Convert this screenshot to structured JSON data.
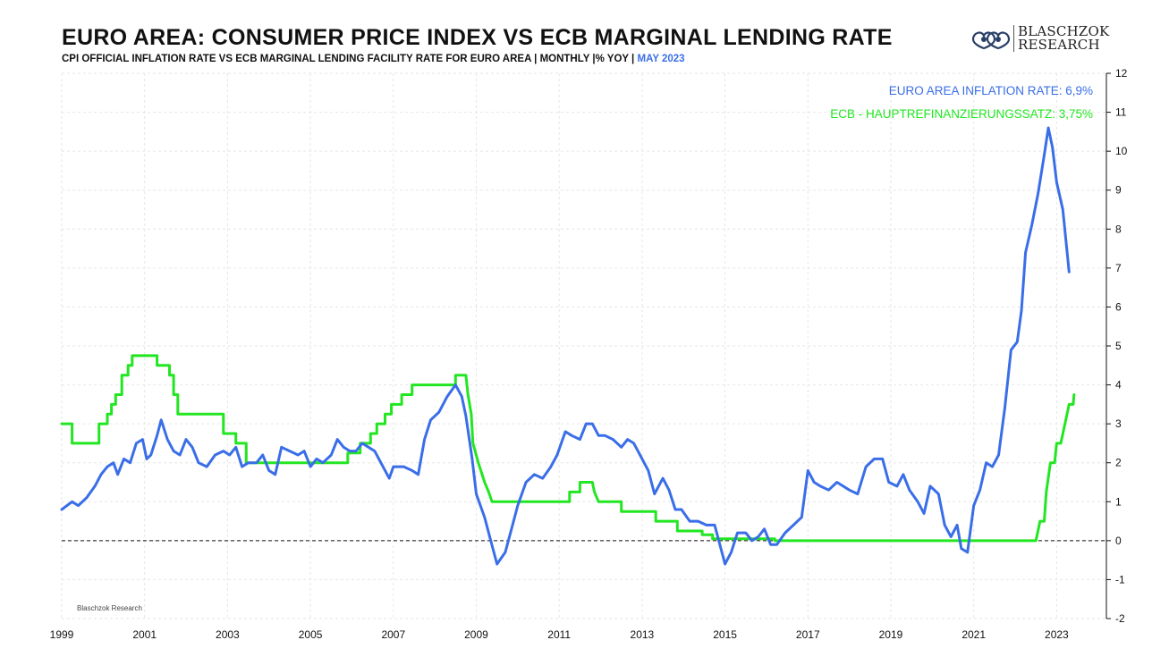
{
  "header": {
    "title": "EURO AREA: CONSUMER PRICE INDEX VS ECB MARGINAL LENDING RATE",
    "subtitle": "CPI OFFICIAL INFLATION RATE VS ECB MARGINAL LENDING FACILITY RATE FOR EURO AREA | MONTHLY |% YOY |",
    "subtitle_date": "MAY 2023"
  },
  "logo": {
    "line1": "BLASCHZOK",
    "line2": "RESEARCH"
  },
  "watermark": "Blaschzok Research",
  "colors": {
    "inflation": "#3a6ee8",
    "ecb": "#22e622",
    "zero_line": "#111111",
    "grid": "#e6e6e6"
  },
  "chart_data": {
    "type": "line",
    "title": "EURO AREA: CONSUMER PRICE INDEX VS ECB MARGINAL LENDING RATE",
    "xlim": [
      1999,
      2024.2
    ],
    "ylim": [
      -2,
      12
    ],
    "y_axis_position": "right",
    "x_ticks": [
      "1999",
      "2001",
      "2003",
      "2005",
      "2007",
      "2009",
      "2011",
      "2013",
      "2015",
      "2017",
      "2019",
      "2021",
      "2023"
    ],
    "y_ticks": [
      "12",
      "11",
      "10",
      "9",
      "8",
      "7",
      "6",
      "5",
      "4",
      "3",
      "2",
      "1",
      "0",
      "-1",
      "-2"
    ],
    "grid": true,
    "reference_line": {
      "y": 0,
      "style": "dashed"
    },
    "legend": [
      {
        "label": "EURO AREA INFLATION RATE: 6,9%",
        "series": "inflation"
      },
      {
        "label": "ECB - HAUPTREFINANZIERUNGSSATZ: 3,75%",
        "series": "ecb"
      }
    ],
    "series": [
      {
        "key": "inflation",
        "points": [
          [
            1999.0,
            0.8
          ],
          [
            1999.25,
            1.0
          ],
          [
            1999.4,
            0.9
          ],
          [
            1999.6,
            1.1
          ],
          [
            1999.8,
            1.4
          ],
          [
            1999.95,
            1.7
          ],
          [
            2000.1,
            1.9
          ],
          [
            2000.25,
            2.0
          ],
          [
            2000.35,
            1.7
          ],
          [
            2000.5,
            2.1
          ],
          [
            2000.65,
            2.0
          ],
          [
            2000.8,
            2.5
          ],
          [
            2000.95,
            2.6
          ],
          [
            2001.05,
            2.1
          ],
          [
            2001.15,
            2.2
          ],
          [
            2001.3,
            2.7
          ],
          [
            2001.4,
            3.1
          ],
          [
            2001.55,
            2.6
          ],
          [
            2001.7,
            2.3
          ],
          [
            2001.85,
            2.2
          ],
          [
            2002.0,
            2.6
          ],
          [
            2002.15,
            2.4
          ],
          [
            2002.3,
            2.0
          ],
          [
            2002.5,
            1.9
          ],
          [
            2002.7,
            2.2
          ],
          [
            2002.9,
            2.3
          ],
          [
            2003.05,
            2.2
          ],
          [
            2003.2,
            2.4
          ],
          [
            2003.35,
            1.9
          ],
          [
            2003.5,
            2.0
          ],
          [
            2003.7,
            2.0
          ],
          [
            2003.85,
            2.2
          ],
          [
            2004.0,
            1.8
          ],
          [
            2004.15,
            1.7
          ],
          [
            2004.3,
            2.4
          ],
          [
            2004.5,
            2.3
          ],
          [
            2004.7,
            2.2
          ],
          [
            2004.85,
            2.3
          ],
          [
            2005.0,
            1.9
          ],
          [
            2005.15,
            2.1
          ],
          [
            2005.3,
            2.0
          ],
          [
            2005.5,
            2.2
          ],
          [
            2005.65,
            2.6
          ],
          [
            2005.8,
            2.4
          ],
          [
            2005.95,
            2.3
          ],
          [
            2006.1,
            2.3
          ],
          [
            2006.25,
            2.5
          ],
          [
            2006.4,
            2.4
          ],
          [
            2006.55,
            2.3
          ],
          [
            2006.75,
            1.9
          ],
          [
            2006.9,
            1.6
          ],
          [
            2007.0,
            1.9
          ],
          [
            2007.25,
            1.9
          ],
          [
            2007.45,
            1.8
          ],
          [
            2007.6,
            1.7
          ],
          [
            2007.75,
            2.6
          ],
          [
            2007.9,
            3.1
          ],
          [
            2008.1,
            3.3
          ],
          [
            2008.3,
            3.7
          ],
          [
            2008.5,
            4.0
          ],
          [
            2008.65,
            3.7
          ],
          [
            2008.75,
            3.2
          ],
          [
            2008.9,
            2.1
          ],
          [
            2009.0,
            1.2
          ],
          [
            2009.2,
            0.6
          ],
          [
            2009.35,
            0.0
          ],
          [
            2009.5,
            -0.6
          ],
          [
            2009.7,
            -0.3
          ],
          [
            2009.9,
            0.5
          ],
          [
            2010.0,
            0.9
          ],
          [
            2010.2,
            1.5
          ],
          [
            2010.4,
            1.7
          ],
          [
            2010.6,
            1.6
          ],
          [
            2010.8,
            1.9
          ],
          [
            2010.95,
            2.2
          ],
          [
            2011.15,
            2.8
          ],
          [
            2011.3,
            2.7
          ],
          [
            2011.5,
            2.6
          ],
          [
            2011.65,
            3.0
          ],
          [
            2011.8,
            3.0
          ],
          [
            2011.95,
            2.7
          ],
          [
            2012.1,
            2.7
          ],
          [
            2012.3,
            2.6
          ],
          [
            2012.5,
            2.4
          ],
          [
            2012.65,
            2.6
          ],
          [
            2012.8,
            2.5
          ],
          [
            2012.95,
            2.2
          ],
          [
            2013.15,
            1.8
          ],
          [
            2013.3,
            1.2
          ],
          [
            2013.5,
            1.6
          ],
          [
            2013.65,
            1.3
          ],
          [
            2013.8,
            0.8
          ],
          [
            2013.95,
            0.8
          ],
          [
            2014.15,
            0.5
          ],
          [
            2014.35,
            0.5
          ],
          [
            2014.55,
            0.4
          ],
          [
            2014.75,
            0.4
          ],
          [
            2014.9,
            -0.2
          ],
          [
            2015.0,
            -0.6
          ],
          [
            2015.15,
            -0.3
          ],
          [
            2015.3,
            0.2
          ],
          [
            2015.5,
            0.2
          ],
          [
            2015.65,
            0.0
          ],
          [
            2015.8,
            0.1
          ],
          [
            2015.95,
            0.3
          ],
          [
            2016.1,
            -0.1
          ],
          [
            2016.25,
            -0.1
          ],
          [
            2016.45,
            0.2
          ],
          [
            2016.65,
            0.4
          ],
          [
            2016.85,
            0.6
          ],
          [
            2017.0,
            1.8
          ],
          [
            2017.15,
            1.5
          ],
          [
            2017.3,
            1.4
          ],
          [
            2017.5,
            1.3
          ],
          [
            2017.7,
            1.5
          ],
          [
            2017.85,
            1.4
          ],
          [
            2018.0,
            1.3
          ],
          [
            2018.2,
            1.2
          ],
          [
            2018.4,
            1.9
          ],
          [
            2018.6,
            2.1
          ],
          [
            2018.8,
            2.1
          ],
          [
            2018.95,
            1.5
          ],
          [
            2019.15,
            1.4
          ],
          [
            2019.3,
            1.7
          ],
          [
            2019.45,
            1.3
          ],
          [
            2019.65,
            1.0
          ],
          [
            2019.8,
            0.7
          ],
          [
            2019.95,
            1.4
          ],
          [
            2020.15,
            1.2
          ],
          [
            2020.3,
            0.4
          ],
          [
            2020.45,
            0.1
          ],
          [
            2020.6,
            0.4
          ],
          [
            2020.7,
            -0.2
          ],
          [
            2020.85,
            -0.3
          ],
          [
            2021.0,
            0.9
          ],
          [
            2021.15,
            1.3
          ],
          [
            2021.3,
            2.0
          ],
          [
            2021.45,
            1.9
          ],
          [
            2021.6,
            2.2
          ],
          [
            2021.75,
            3.4
          ],
          [
            2021.9,
            4.9
          ],
          [
            2022.05,
            5.1
          ],
          [
            2022.15,
            5.9
          ],
          [
            2022.25,
            7.4
          ],
          [
            2022.4,
            8.1
          ],
          [
            2022.55,
            8.9
          ],
          [
            2022.7,
            9.9
          ],
          [
            2022.8,
            10.6
          ],
          [
            2022.9,
            10.1
          ],
          [
            2023.0,
            9.2
          ],
          [
            2023.15,
            8.5
          ],
          [
            2023.3,
            6.9
          ]
        ]
      },
      {
        "key": "ecb",
        "points": [
          [
            1999.0,
            3.0
          ],
          [
            1999.25,
            3.0
          ],
          [
            1999.25,
            2.5
          ],
          [
            1999.9,
            2.5
          ],
          [
            1999.9,
            3.0
          ],
          [
            2000.1,
            3.0
          ],
          [
            2000.1,
            3.25
          ],
          [
            2000.2,
            3.25
          ],
          [
            2000.2,
            3.5
          ],
          [
            2000.3,
            3.5
          ],
          [
            2000.3,
            3.75
          ],
          [
            2000.45,
            3.75
          ],
          [
            2000.45,
            4.25
          ],
          [
            2000.6,
            4.25
          ],
          [
            2000.6,
            4.5
          ],
          [
            2000.7,
            4.5
          ],
          [
            2000.7,
            4.75
          ],
          [
            2001.3,
            4.75
          ],
          [
            2001.3,
            4.5
          ],
          [
            2001.6,
            4.5
          ],
          [
            2001.6,
            4.25
          ],
          [
            2001.7,
            4.25
          ],
          [
            2001.7,
            3.75
          ],
          [
            2001.8,
            3.75
          ],
          [
            2001.8,
            3.25
          ],
          [
            2002.9,
            3.25
          ],
          [
            2002.9,
            2.75
          ],
          [
            2003.2,
            2.75
          ],
          [
            2003.2,
            2.5
          ],
          [
            2003.45,
            2.5
          ],
          [
            2003.45,
            2.0
          ],
          [
            2005.9,
            2.0
          ],
          [
            2005.9,
            2.25
          ],
          [
            2006.2,
            2.25
          ],
          [
            2006.2,
            2.5
          ],
          [
            2006.45,
            2.5
          ],
          [
            2006.45,
            2.75
          ],
          [
            2006.6,
            2.75
          ],
          [
            2006.6,
            3.0
          ],
          [
            2006.8,
            3.0
          ],
          [
            2006.8,
            3.25
          ],
          [
            2006.95,
            3.25
          ],
          [
            2006.95,
            3.5
          ],
          [
            2007.2,
            3.5
          ],
          [
            2007.2,
            3.75
          ],
          [
            2007.45,
            3.75
          ],
          [
            2007.45,
            4.0
          ],
          [
            2008.5,
            4.0
          ],
          [
            2008.5,
            4.25
          ],
          [
            2008.75,
            4.25
          ],
          [
            2008.8,
            3.75
          ],
          [
            2008.88,
            3.25
          ],
          [
            2008.92,
            2.5
          ],
          [
            2009.05,
            2.0
          ],
          [
            2009.2,
            1.5
          ],
          [
            2009.3,
            1.25
          ],
          [
            2009.38,
            1.0
          ],
          [
            2011.25,
            1.0
          ],
          [
            2011.25,
            1.25
          ],
          [
            2011.5,
            1.25
          ],
          [
            2011.5,
            1.5
          ],
          [
            2011.8,
            1.5
          ],
          [
            2011.85,
            1.25
          ],
          [
            2011.95,
            1.0
          ],
          [
            2012.5,
            1.0
          ],
          [
            2012.5,
            0.75
          ],
          [
            2013.33,
            0.75
          ],
          [
            2013.33,
            0.5
          ],
          [
            2013.85,
            0.5
          ],
          [
            2013.85,
            0.25
          ],
          [
            2014.45,
            0.25
          ],
          [
            2014.45,
            0.15
          ],
          [
            2014.7,
            0.15
          ],
          [
            2014.7,
            0.05
          ],
          [
            2016.2,
            0.05
          ],
          [
            2016.2,
            0.0
          ],
          [
            2022.5,
            0.0
          ],
          [
            2022.6,
            0.5
          ],
          [
            2022.7,
            0.5
          ],
          [
            2022.75,
            1.25
          ],
          [
            2022.85,
            2.0
          ],
          [
            2022.95,
            2.0
          ],
          [
            2023.0,
            2.5
          ],
          [
            2023.1,
            2.5
          ],
          [
            2023.2,
            3.0
          ],
          [
            2023.3,
            3.5
          ],
          [
            2023.4,
            3.5
          ],
          [
            2023.42,
            3.75
          ]
        ]
      }
    ]
  }
}
